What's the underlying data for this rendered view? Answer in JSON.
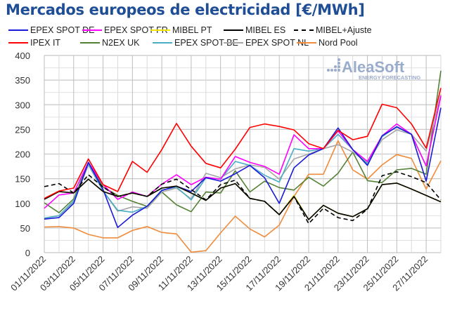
{
  "chart_data": {
    "type": "line",
    "title": "Mercados europeos de electricidad [€/MWh]",
    "xlabel": "",
    "ylabel": "",
    "ylim": [
      0,
      400
    ],
    "yticks": [
      "0",
      "50",
      "100",
      "150",
      "200",
      "250",
      "300",
      "350",
      "400"
    ],
    "xticks": [
      "01/11/2022",
      "03/11/2022",
      "05/11/2022",
      "07/11/2022",
      "09/11/2022",
      "11/11/2022",
      "13/11/2022",
      "15/11/2022",
      "17/11/2022",
      "19/11/2022",
      "21/11/2022",
      "23/11/2022",
      "25/11/2022",
      "27/11/2022"
    ],
    "x": [
      "01/11/2022",
      "02/11/2022",
      "03/11/2022",
      "04/11/2022",
      "05/11/2022",
      "06/11/2022",
      "07/11/2022",
      "08/11/2022",
      "09/11/2022",
      "10/11/2022",
      "11/11/2022",
      "12/11/2022",
      "13/11/2022",
      "14/11/2022",
      "15/11/2022",
      "16/11/2022",
      "17/11/2022",
      "18/11/2022",
      "19/11/2022",
      "20/11/2022",
      "21/11/2022",
      "22/11/2022",
      "23/11/2022",
      "24/11/2022",
      "25/11/2022",
      "26/11/2022",
      "27/11/2022",
      "28/11/2022"
    ],
    "grid": true,
    "legend_position": "top",
    "series": [
      {
        "name": "Nord Pool",
        "color": "#f08c3c",
        "dashed": false,
        "values": [
          52,
          53,
          50,
          37,
          30,
          30,
          45,
          53,
          41,
          38,
          1,
          4,
          40,
          74,
          48,
          32,
          56,
          114,
          159,
          159,
          227,
          168,
          149,
          178,
          199,
          191,
          129,
          186
        ]
      },
      {
        "name": "N2EX UK",
        "color": "#548235",
        "dashed": false,
        "values": [
          101,
          81,
          109,
          183,
          133,
          116,
          104,
          94,
          123,
          97,
          83,
          123,
          121,
          166,
          123,
          145,
          132,
          127,
          153,
          135,
          161,
          204,
          146,
          142,
          168,
          171,
          159,
          369
        ]
      },
      {
        "name": "EPEX SPOT NL",
        "color": "#a6a6a6",
        "dashed": false,
        "values": [
          70,
          75,
          103,
          178,
          125,
          84,
          93,
          90,
          123,
          131,
          109,
          161,
          152,
          170,
          178,
          173,
          149,
          190,
          200,
          211,
          219,
          204,
          183,
          229,
          249,
          240,
          206,
          320
        ]
      },
      {
        "name": "EPEX SPOT BE",
        "color": "#4bacc6",
        "dashed": false,
        "values": [
          70,
          75,
          105,
          180,
          125,
          86,
          82,
          94,
          127,
          133,
          107,
          152,
          149,
          185,
          177,
          157,
          143,
          211,
          206,
          211,
          240,
          209,
          180,
          235,
          256,
          240,
          176,
          318
        ]
      },
      {
        "name": "EPEX SPOT FR",
        "color": "#ff00ff",
        "dashed": false,
        "values": [
          90,
          117,
          121,
          183,
          138,
          108,
          123,
          114,
          139,
          158,
          138,
          153,
          149,
          195,
          183,
          175,
          159,
          239,
          211,
          211,
          247,
          209,
          185,
          237,
          261,
          240,
          176,
          318
        ]
      },
      {
        "name": "EPEX SPOT DE",
        "color": "#1a1ad8",
        "dashed": false,
        "values": [
          68,
          71,
          100,
          183,
          128,
          51,
          76,
          94,
          126,
          135,
          124,
          152,
          145,
          160,
          177,
          152,
          100,
          172,
          198,
          211,
          253,
          209,
          177,
          237,
          255,
          240,
          145,
          294
        ]
      },
      {
        "name": "MIBEL PT",
        "color": "#f2e600",
        "dashed": false,
        "values": [
          108,
          124,
          121,
          149,
          124,
          114,
          121,
          114,
          131,
          135,
          121,
          106,
          131,
          140,
          110,
          104,
          77,
          116,
          67,
          96,
          80,
          73,
          89,
          138,
          141,
          129,
          116,
          103
        ]
      },
      {
        "name": "MIBEL ES",
        "color": "#000000",
        "dashed": false,
        "values": [
          108,
          124,
          121,
          149,
          124,
          114,
          121,
          114,
          131,
          135,
          121,
          106,
          131,
          140,
          110,
          104,
          77,
          114,
          67,
          96,
          80,
          73,
          89,
          138,
          141,
          129,
          116,
          103
        ]
      },
      {
        "name": "MIBEL+Ajuste",
        "color": "#000000",
        "dashed": true,
        "values": [
          134,
          140,
          121,
          158,
          133,
          114,
          121,
          114,
          139,
          149,
          128,
          107,
          138,
          147,
          110,
          104,
          77,
          114,
          59,
          90,
          71,
          65,
          88,
          156,
          164,
          154,
          142,
          107
        ]
      },
      {
        "name": "IPEX IT",
        "color": "#ff0000",
        "dashed": false,
        "values": [
          110,
          125,
          131,
          190,
          138,
          124,
          185,
          163,
          209,
          262,
          216,
          181,
          172,
          210,
          254,
          261,
          256,
          249,
          221,
          211,
          248,
          229,
          236,
          301,
          294,
          261,
          212,
          334
        ]
      }
    ],
    "legend": [
      [
        "EPEX SPOT DE",
        "#1a1ad8",
        false
      ],
      [
        "EPEX SPOT FR",
        "#ff00ff",
        false
      ],
      [
        "MIBEL PT",
        "#f2e600",
        false
      ],
      [
        "MIBEL ES",
        "#000000",
        false
      ],
      [
        "MIBEL+Ajuste",
        "#000000",
        true
      ],
      [
        "IPEX IT",
        "#ff0000",
        false
      ],
      [
        "N2EX UK",
        "#548235",
        false
      ],
      [
        "EPEX SPOT BE",
        "#4bacc6",
        false
      ],
      [
        "EPEX SPOT NL",
        "#a6a6a6",
        false
      ],
      [
        "Nord Pool",
        "#f08c3c",
        false
      ]
    ]
  },
  "logo": {
    "name": "AleaSoft",
    "tagline": "ENERGY FORECASTING",
    "color": "#9aaccc"
  }
}
